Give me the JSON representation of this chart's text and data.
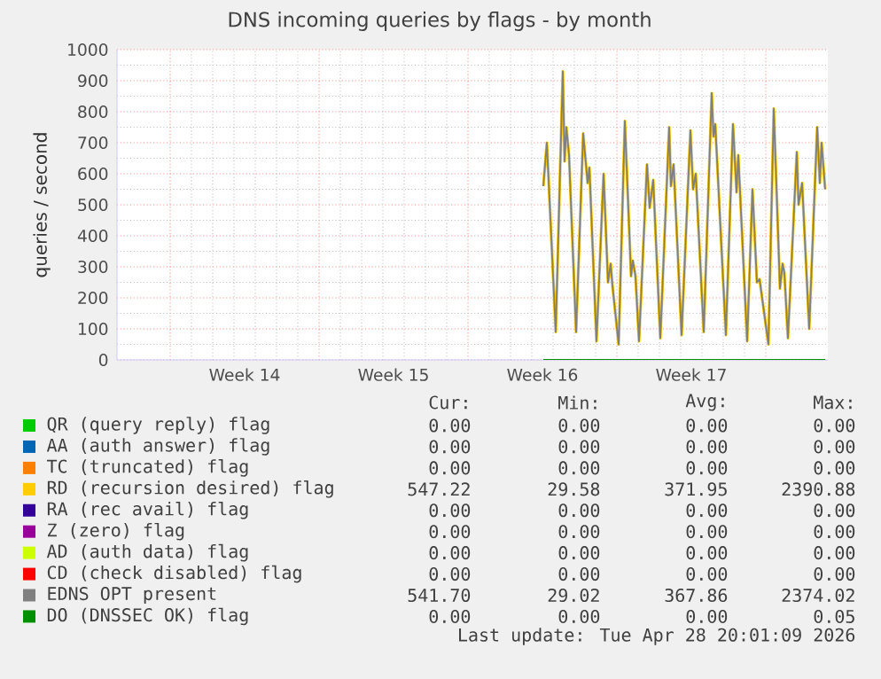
{
  "chart_data": {
    "type": "line",
    "title": "DNS incoming queries by flags - by month",
    "ylabel": "queries / second",
    "xlim": [
      "2026-03-27T12:00",
      "2026-04-29T22:00"
    ],
    "xticks": [
      {
        "value": "2026-03-30T00:00",
        "label": null
      },
      {
        "value": "2026-04-02T12:00",
        "label": "Week 14"
      },
      {
        "value": "2026-04-06T00:00",
        "label": null
      },
      {
        "value": "2026-04-09T12:00",
        "label": "Week 15"
      },
      {
        "value": "2026-04-13T00:00",
        "label": null
      },
      {
        "value": "2026-04-16T12:00",
        "label": "Week 16"
      },
      {
        "value": "2026-04-20T00:00",
        "label": null
      },
      {
        "value": "2026-04-23T12:00",
        "label": "Week 17"
      },
      {
        "value": "2026-04-27T00:00",
        "label": null
      }
    ],
    "ylim": [
      0,
      1000
    ],
    "yticks": [
      0,
      100,
      200,
      300,
      400,
      500,
      600,
      700,
      800,
      900,
      1000
    ],
    "grid": true,
    "legend": "bottom",
    "marker": "none",
    "x": [
      "2026-04-16T13:00",
      "2026-04-16T17:00",
      "2026-04-17T03:00",
      "2026-04-17T11:00",
      "2026-04-17T13:00",
      "2026-04-17T15:00",
      "2026-04-17T18:00",
      "2026-04-18T02:00",
      "2026-04-18T10:00",
      "2026-04-18T15:00",
      "2026-04-18T17:00",
      "2026-04-19T01:00",
      "2026-04-19T09:00",
      "2026-04-19T14:00",
      "2026-04-19T17:00",
      "2026-04-19T19:00",
      "2026-04-20T02:00",
      "2026-04-20T09:00",
      "2026-04-20T16:00",
      "2026-04-20T18:00",
      "2026-04-20T21:00",
      "2026-04-21T01:00",
      "2026-04-21T10:00",
      "2026-04-21T13:00",
      "2026-04-21T17:00",
      "2026-04-22T01:00",
      "2026-04-22T11:00",
      "2026-04-22T13:00",
      "2026-04-22T16:00",
      "2026-04-23T01:00",
      "2026-04-23T11:00",
      "2026-04-23T14:00",
      "2026-04-23T17:00",
      "2026-04-24T02:00",
      "2026-04-24T11:00",
      "2026-04-24T13:00",
      "2026-04-24T15:00",
      "2026-04-25T03:00",
      "2026-04-25T11:00",
      "2026-04-25T15:00",
      "2026-04-25T17:00",
      "2026-04-26T03:00",
      "2026-04-26T09:00",
      "2026-04-26T14:00",
      "2026-04-26T17:00",
      "2026-04-27T03:00",
      "2026-04-27T09:00",
      "2026-04-27T16:00",
      "2026-04-27T19:00",
      "2026-04-27T21:00",
      "2026-04-28T01:00",
      "2026-04-28T11:00",
      "2026-04-28T13:00",
      "2026-04-28T17:00",
      "2026-04-29T01:00",
      "2026-04-29T10:00",
      "2026-04-29T13:00",
      "2026-04-29T15:00",
      "2026-04-29T19:00"
    ],
    "series": [
      {
        "name": "QR (query reply) flag",
        "color": "#00cc00",
        "values": [
          null,
          null,
          null,
          null,
          null,
          null,
          null,
          null,
          null,
          null,
          null,
          null,
          null,
          null,
          null,
          null,
          null,
          null,
          null,
          null,
          null,
          null,
          null,
          null,
          null,
          null,
          null,
          null,
          null,
          null,
          null,
          null,
          null,
          null,
          null,
          null,
          null,
          null,
          null,
          null,
          null,
          null,
          null,
          null,
          null,
          null,
          null,
          null,
          null,
          null,
          null,
          null,
          null,
          null,
          null,
          null,
          null,
          null,
          null
        ]
      },
      {
        "name": "AA (auth answer) flag",
        "color": "#0066b3",
        "values": [
          null,
          null,
          null,
          null,
          null,
          null,
          null,
          null,
          null,
          null,
          null,
          null,
          null,
          null,
          null,
          null,
          null,
          null,
          null,
          null,
          null,
          null,
          null,
          null,
          null,
          null,
          null,
          null,
          null,
          null,
          null,
          null,
          null,
          null,
          null,
          null,
          null,
          null,
          null,
          null,
          null,
          null,
          null,
          null,
          null,
          null,
          null,
          null,
          null,
          null,
          null,
          null,
          null,
          null,
          null,
          null,
          null,
          null,
          null
        ]
      },
      {
        "name": "TC (truncated) flag",
        "color": "#ff8000",
        "values": [
          null,
          null,
          null,
          null,
          null,
          null,
          null,
          null,
          null,
          null,
          null,
          null,
          null,
          null,
          null,
          null,
          null,
          null,
          null,
          null,
          null,
          null,
          null,
          null,
          null,
          null,
          null,
          null,
          null,
          null,
          null,
          null,
          null,
          null,
          null,
          null,
          null,
          null,
          null,
          null,
          null,
          null,
          null,
          null,
          null,
          null,
          null,
          null,
          null,
          null,
          null,
          null,
          null,
          null,
          null,
          null,
          null,
          null,
          null
        ]
      },
      {
        "name": "RD (recursion desired) flag",
        "color": "#ffcc00",
        "values": [
          560,
          700,
          90,
          930,
          640,
          750,
          660,
          90,
          730,
          570,
          620,
          60,
          600,
          250,
          310,
          240,
          50,
          770,
          270,
          320,
          270,
          60,
          630,
          490,
          580,
          70,
          750,
          560,
          630,
          80,
          740,
          550,
          600,
          90,
          860,
          720,
          760,
          80,
          760,
          540,
          660,
          60,
          550,
          250,
          260,
          50,
          810,
          230,
          310,
          280,
          70,
          670,
          500,
          570,
          100,
          750,
          570,
          700,
          550
        ]
      },
      {
        "name": "RA (rec avail) flag",
        "color": "#330099",
        "values": [
          null,
          null,
          null,
          null,
          null,
          null,
          null,
          null,
          null,
          null,
          null,
          null,
          null,
          null,
          null,
          null,
          null,
          null,
          null,
          null,
          null,
          null,
          null,
          null,
          null,
          null,
          null,
          null,
          null,
          null,
          null,
          null,
          null,
          null,
          null,
          null,
          null,
          null,
          null,
          null,
          null,
          null,
          null,
          null,
          null,
          null,
          null,
          null,
          null,
          null,
          null,
          null,
          null,
          null,
          null,
          null,
          null,
          null,
          null
        ]
      },
      {
        "name": "Z (zero) flag",
        "color": "#990099",
        "values": [
          null,
          null,
          null,
          null,
          null,
          null,
          null,
          null,
          null,
          null,
          null,
          null,
          null,
          null,
          null,
          null,
          null,
          null,
          null,
          null,
          null,
          null,
          null,
          null,
          null,
          null,
          null,
          null,
          null,
          null,
          null,
          null,
          null,
          null,
          null,
          null,
          null,
          null,
          null,
          null,
          null,
          null,
          null,
          null,
          null,
          null,
          null,
          null,
          null,
          null,
          null,
          null,
          null,
          null,
          null,
          null,
          null,
          null,
          null
        ]
      },
      {
        "name": "AD (auth data) flag",
        "color": "#ccff00",
        "values": [
          null,
          null,
          null,
          null,
          null,
          null,
          null,
          null,
          null,
          null,
          null,
          null,
          null,
          null,
          null,
          null,
          null,
          null,
          null,
          null,
          null,
          null,
          null,
          null,
          null,
          null,
          null,
          null,
          null,
          null,
          null,
          null,
          null,
          null,
          null,
          null,
          null,
          null,
          null,
          null,
          null,
          null,
          null,
          null,
          null,
          null,
          null,
          null,
          null,
          null,
          null,
          null,
          null,
          null,
          null,
          null,
          null,
          null,
          null
        ]
      },
      {
        "name": "CD (check disabled) flag",
        "color": "#ff0000",
        "values": [
          null,
          null,
          null,
          null,
          null,
          null,
          null,
          null,
          null,
          null,
          null,
          null,
          null,
          null,
          null,
          null,
          null,
          null,
          null,
          null,
          null,
          null,
          null,
          null,
          null,
          null,
          null,
          null,
          null,
          null,
          null,
          null,
          null,
          null,
          null,
          null,
          null,
          null,
          null,
          null,
          null,
          null,
          null,
          null,
          null,
          null,
          null,
          null,
          null,
          null,
          null,
          null,
          null,
          null,
          null,
          null,
          null,
          null,
          null
        ]
      },
      {
        "name": "EDNS OPT present",
        "color": "#808080",
        "values": [
          560,
          700,
          90,
          930,
          640,
          750,
          660,
          90,
          730,
          570,
          620,
          60,
          600,
          250,
          310,
          240,
          50,
          770,
          270,
          320,
          270,
          60,
          630,
          490,
          580,
          70,
          750,
          560,
          630,
          80,
          740,
          550,
          600,
          90,
          860,
          720,
          760,
          80,
          760,
          540,
          660,
          60,
          550,
          250,
          260,
          50,
          810,
          230,
          310,
          280,
          70,
          670,
          500,
          570,
          100,
          750,
          570,
          700,
          550
        ]
      },
      {
        "name": "DO (DNSSEC OK) flag",
        "color": "#008f00",
        "x": [
          "2026-04-16T13:00",
          "2026-04-29T19:00"
        ],
        "values": [
          0,
          0
        ]
      }
    ],
    "annotations": [
      "Cur:",
      "Min:",
      "Avg:",
      "Max:",
      "0.00",
      "0.00",
      "0.00",
      "0.00",
      "0.00",
      "0.00",
      "0.00",
      "0.00",
      "0.00",
      "0.00",
      "0.00",
      "0.00",
      "547.22",
      "29.58",
      "371.95",
      "2390.88",
      "0.00",
      "0.00",
      "0.00",
      "0.00",
      "0.00",
      "0.00",
      "0.00",
      "0.00",
      "0.00",
      "0.00",
      "0.00",
      "0.00",
      "0.00",
      "0.00",
      "0.00",
      "0.00",
      "541.70",
      "29.02",
      "367.86",
      "2374.02",
      "0.00",
      "0.00",
      "0.00",
      "0.05",
      "Last update: Tue Apr 28 20:01:09 2026"
    ]
  }
}
